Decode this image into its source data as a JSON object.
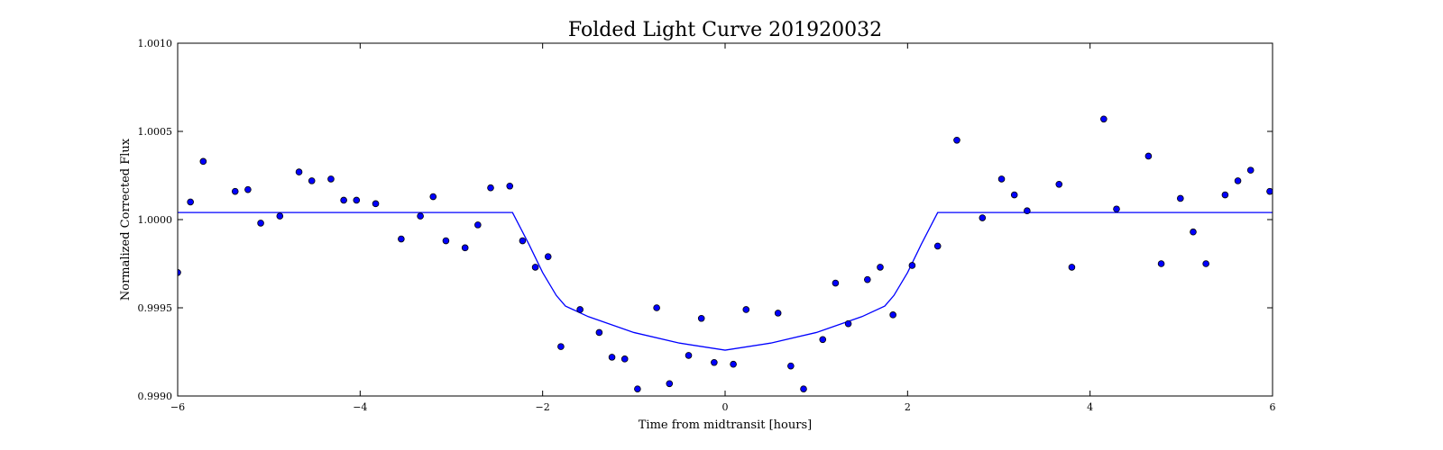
{
  "chart_data": {
    "type": "scatter",
    "title": "Folded Light Curve 201920032",
    "xlabel": "Time from midtransit [hours]",
    "ylabel": "Normalized Corrected Flux",
    "xlim": [
      -6,
      6
    ],
    "ylim": [
      0.999,
      1.001
    ],
    "xticks": [
      -6,
      -4,
      -2,
      0,
      2,
      4,
      6
    ],
    "xtick_labels": [
      "−6",
      "−4",
      "−2",
      "0",
      "2",
      "4",
      "6"
    ],
    "yticks": [
      0.999,
      0.9995,
      1.0,
      1.0005,
      1.001
    ],
    "ytick_labels": [
      "0.9990",
      "0.9995",
      "1.0000",
      "1.0005",
      "1.0010"
    ],
    "grid": false,
    "colors": {
      "points": "#0000ff",
      "point_edge": "#000000",
      "model": "#0000ff"
    },
    "series": [
      {
        "kind": "points",
        "x": [
          -6.0,
          -5.86,
          -5.72,
          -5.37,
          -5.23,
          -5.09,
          -4.88,
          -4.67,
          -4.53,
          -4.32,
          -4.18,
          -4.04,
          -3.83,
          -3.55,
          -3.34,
          -3.2,
          -3.06,
          -2.85,
          -2.71,
          -2.57,
          -2.36,
          -2.22,
          -2.08,
          -1.94,
          -1.8,
          -1.59,
          -1.38,
          -1.24,
          -1.1,
          -0.96,
          -0.75,
          -0.61,
          -0.4,
          -0.26,
          -0.12,
          0.09,
          0.23,
          0.58,
          0.72,
          0.86,
          1.07,
          1.21,
          1.35,
          1.56,
          1.7,
          1.84,
          2.05,
          2.33,
          2.54,
          2.82,
          3.03,
          3.17,
          3.31,
          3.66,
          3.8,
          4.15,
          4.29,
          4.64,
          4.78,
          4.99,
          5.13,
          5.27,
          5.48,
          5.62,
          5.76,
          5.97
        ],
        "y": [
          0.9997,
          1.0001,
          1.00033,
          1.00016,
          1.00017,
          0.99998,
          1.00002,
          1.00027,
          1.00022,
          1.00023,
          1.00011,
          1.00011,
          1.00009,
          0.99989,
          1.00002,
          1.00013,
          0.99988,
          0.99984,
          0.99997,
          1.00018,
          1.00019,
          0.99988,
          0.99973,
          0.99979,
          0.99928,
          0.99949,
          0.99936,
          0.99922,
          0.99921,
          0.99904,
          0.9995,
          0.99907,
          0.99923,
          0.99944,
          0.99919,
          0.99918,
          0.99949,
          0.99947,
          0.99917,
          0.99904,
          0.99932,
          0.99964,
          0.99941,
          0.99966,
          0.99973,
          0.99946,
          0.99974,
          0.99985,
          1.00045,
          1.00001,
          1.00023,
          1.00014,
          1.00005,
          1.0002,
          0.99973,
          1.00057,
          1.00006,
          1.00036,
          0.99975,
          1.00012,
          0.99993,
          0.99975,
          1.00014,
          1.00022,
          1.00028,
          1.00016
        ]
      },
      {
        "kind": "line",
        "x": [
          -6.0,
          -2.33,
          -2.15,
          -2.0,
          -1.85,
          -1.75,
          -1.5,
          -1.0,
          -0.5,
          0.0,
          0.5,
          1.0,
          1.5,
          1.75,
          1.85,
          2.0,
          2.15,
          2.33,
          6.0
        ],
        "y": [
          1.00004,
          1.00004,
          0.99986,
          0.9997,
          0.99957,
          0.99951,
          0.99945,
          0.99936,
          0.9993,
          0.99926,
          0.9993,
          0.99936,
          0.99945,
          0.99951,
          0.99957,
          0.9997,
          0.99986,
          1.00004,
          1.00004
        ]
      }
    ]
  }
}
